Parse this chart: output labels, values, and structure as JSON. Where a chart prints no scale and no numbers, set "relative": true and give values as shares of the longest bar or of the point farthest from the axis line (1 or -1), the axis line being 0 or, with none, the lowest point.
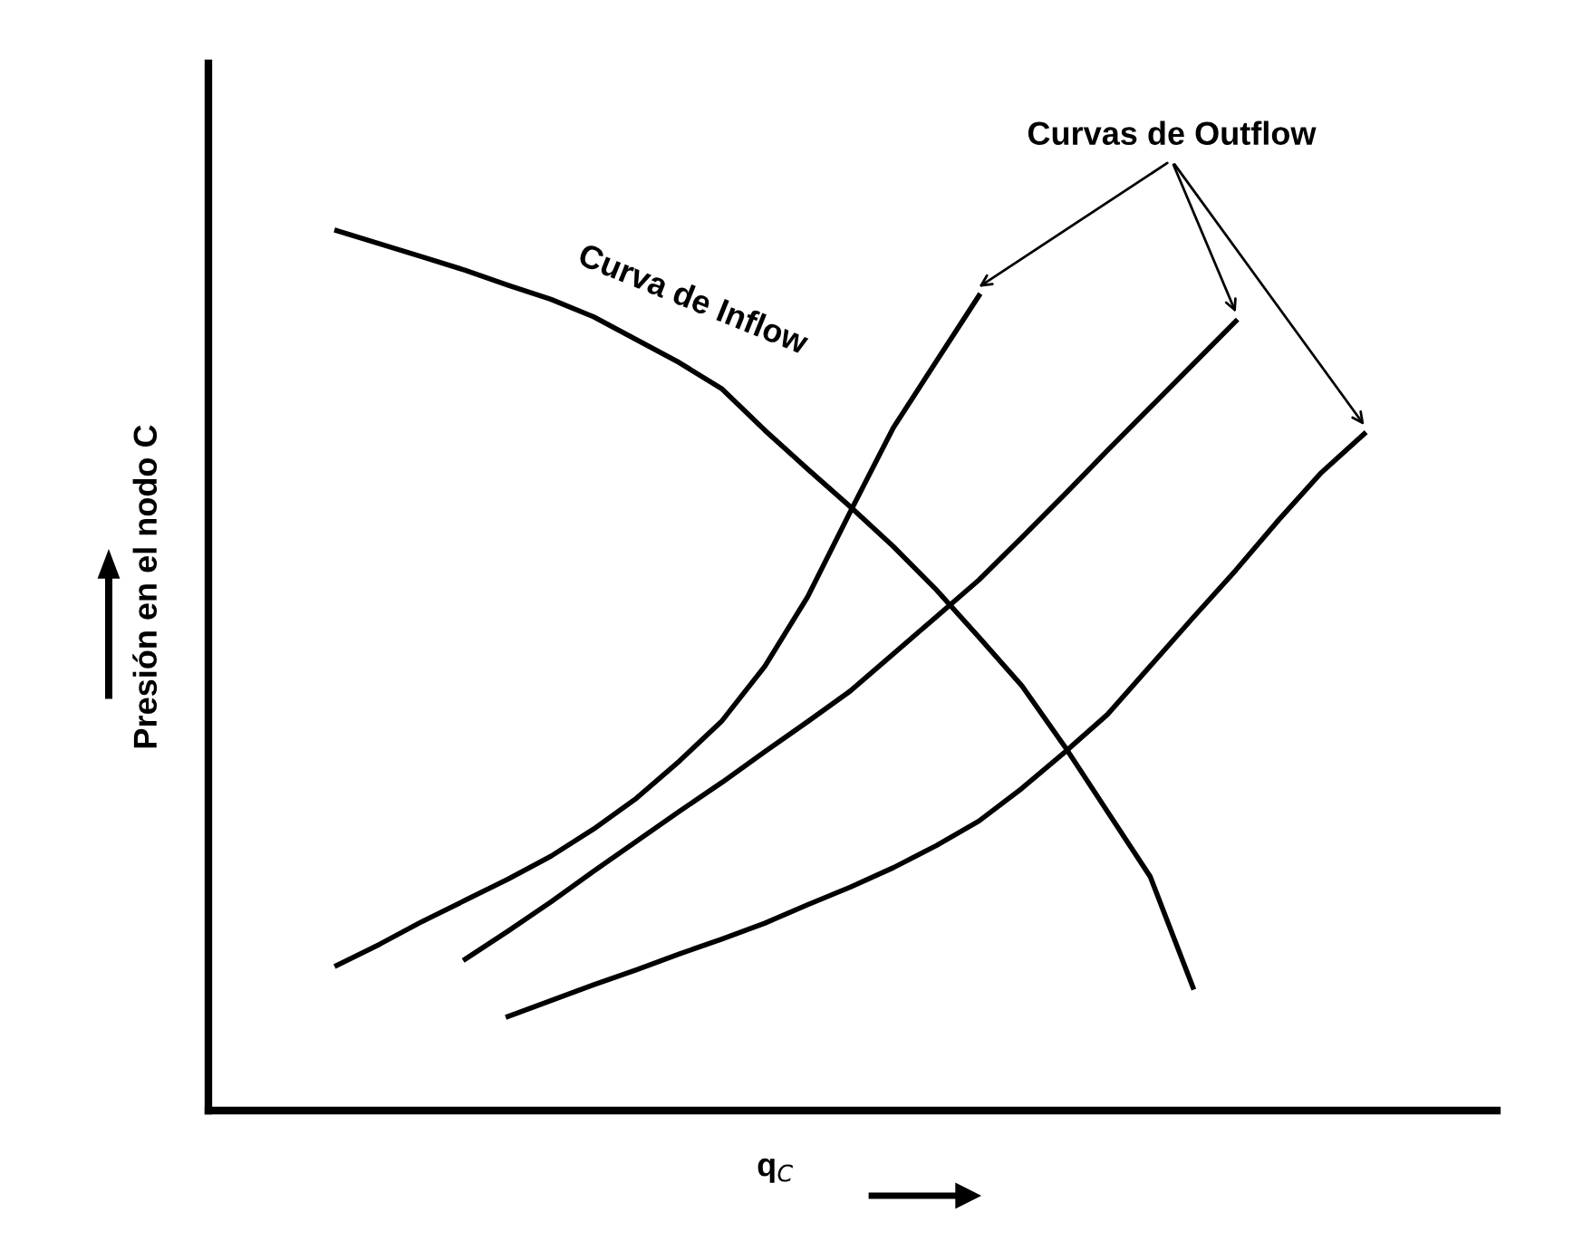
{
  "chart_data": {
    "type": "line",
    "relative": true,
    "xlabel": "q$_{C}$",
    "ylabel": "Presión en el nodo C",
    "marker": "none",
    "line_style": "solid",
    "annotations": [
      "Curva de Inflow",
      "Curvas de Outflow"
    ],
    "categories": [
      null,
      null,
      null,
      null,
      null,
      null,
      null,
      null,
      null,
      null,
      null,
      null,
      null,
      null,
      null,
      null,
      null,
      null,
      null,
      null,
      null,
      null,
      null,
      null,
      null
    ],
    "series": [
      {
        "color": "#000000",
        "values": [
          1.0,
          0.985,
          0.97,
          0.955,
          0.938,
          0.922,
          0.902,
          0.876,
          0.85,
          0.82,
          0.773,
          0.729,
          0.686,
          0.641,
          0.592,
          0.538,
          0.483,
          0.414,
          0.34,
          0.266,
          0.14,
          null,
          null,
          null,
          null
        ]
      },
      {
        "color": "#000000",
        "values": [
          0.165,
          0.189,
          0.215,
          0.239,
          0.263,
          0.289,
          0.32,
          0.355,
          0.397,
          0.443,
          0.505,
          0.584,
          0.681,
          0.776,
          0.851,
          0.926,
          null,
          null,
          null,
          null,
          null,
          null,
          null,
          null,
          null
        ]
      },
      {
        "color": "#000000",
        "values": [
          null,
          null,
          null,
          0.172,
          0.204,
          0.237,
          0.272,
          0.306,
          0.34,
          0.373,
          0.408,
          0.442,
          0.477,
          0.519,
          0.561,
          0.603,
          0.651,
          0.7,
          0.75,
          0.799,
          0.848,
          0.897,
          null,
          null,
          null
        ]
      },
      {
        "color": "#000000",
        "values": [
          null,
          null,
          null,
          null,
          0.107,
          0.125,
          0.143,
          0.16,
          0.178,
          0.195,
          0.213,
          0.234,
          0.254,
          0.276,
          0.301,
          0.329,
          0.366,
          0.407,
          0.45,
          0.505,
          0.56,
          0.614,
          0.671,
          0.725,
          0.769
        ]
      }
    ]
  }
}
